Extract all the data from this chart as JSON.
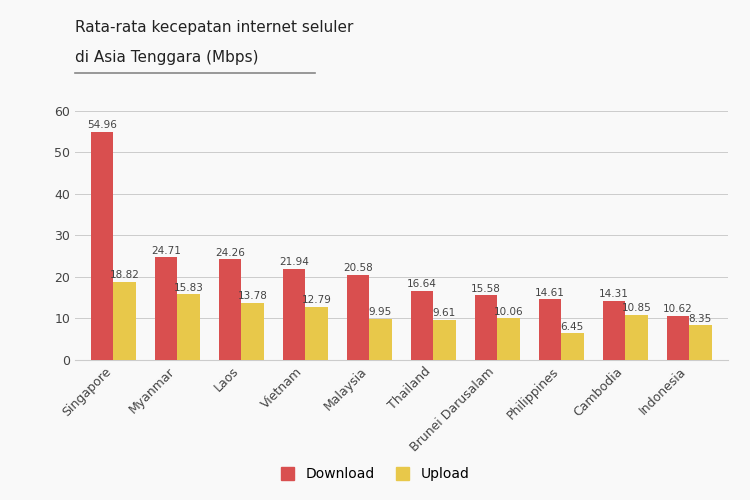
{
  "title_line1": "Rata-rata kecepatan internet seluler",
  "title_line2": "di Asia Tenggara (Mbps)",
  "categories": [
    "Singapore",
    "Myanmar",
    "Laos",
    "Vietnam",
    "Malaysia",
    "Thailand",
    "Brunei Darusalam",
    "Philippines",
    "Cambodia",
    "Indonesia"
  ],
  "download": [
    54.96,
    24.71,
    24.26,
    21.94,
    20.58,
    16.64,
    15.58,
    14.61,
    14.31,
    10.62
  ],
  "upload": [
    18.82,
    15.83,
    13.78,
    12.79,
    9.95,
    9.61,
    10.06,
    6.45,
    10.85,
    8.35
  ],
  "download_color": "#d94f4f",
  "upload_color": "#e8c84a",
  "ylim": [
    0,
    65
  ],
  "yticks": [
    0,
    10,
    20,
    30,
    40,
    50,
    60
  ],
  "bar_width": 0.35,
  "background_color": "#f9f9f9",
  "grid_color": "#cccccc",
  "legend_download": "Download",
  "legend_upload": "Upload",
  "title_fontsize": 11,
  "tick_fontsize": 9,
  "label_fontsize": 7.5
}
